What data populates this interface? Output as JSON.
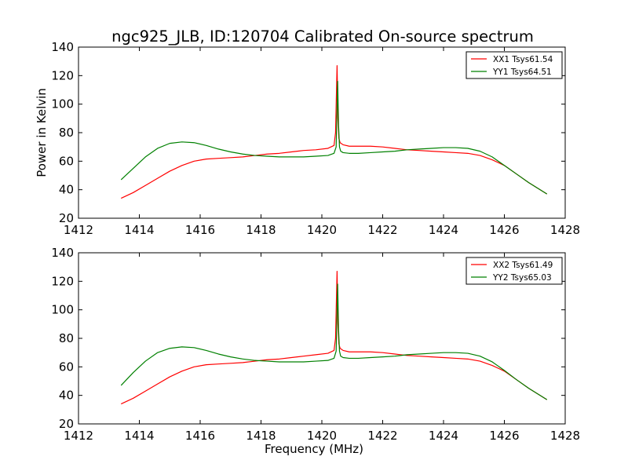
{
  "figure": {
    "title": "ngc925_JLB, ID:120704 Calibrated On-source spectrum",
    "xlabel": "Frequency (MHz)",
    "ylabel": "Power in Kelvin"
  },
  "colors": {
    "xx": "#ff0000",
    "yy": "#008000",
    "axes": "#000000",
    "background": "#ffffff"
  },
  "chart_data": [
    {
      "type": "line",
      "title": "",
      "xlabel": "",
      "ylabel": "Power in Kelvin",
      "xlim": [
        1412,
        1428
      ],
      "ylim": [
        20,
        140
      ],
      "xticks": [
        "1412",
        "1414",
        "1416",
        "1418",
        "1420",
        "1422",
        "1424",
        "1426",
        "1428"
      ],
      "yticks": [
        "20",
        "40",
        "60",
        "80",
        "100",
        "120",
        "140"
      ],
      "legend": "top-right",
      "series": [
        {
          "name": "XX1 Tsys61.54",
          "color": "#ff0000",
          "x": [
            1413.4,
            1413.8,
            1414.2,
            1414.6,
            1415.0,
            1415.4,
            1415.8,
            1416.2,
            1416.6,
            1417.0,
            1417.4,
            1417.8,
            1418.2,
            1418.6,
            1419.0,
            1419.4,
            1419.8,
            1420.2,
            1420.4,
            1420.45,
            1420.5,
            1420.53,
            1420.56,
            1420.6,
            1420.7,
            1420.9,
            1421.2,
            1421.6,
            1422.0,
            1422.4,
            1422.8,
            1423.2,
            1423.6,
            1424.0,
            1424.4,
            1424.8,
            1425.2,
            1425.6,
            1426.0,
            1426.4,
            1426.8,
            1427.1,
            1427.4
          ],
          "y": [
            34,
            38,
            43,
            48,
            53,
            57,
            60,
            61.5,
            62,
            62.5,
            63,
            64,
            65,
            65.5,
            66.5,
            67.5,
            68,
            69,
            71,
            80,
            127,
            90,
            76,
            73,
            71.5,
            70.5,
            70.5,
            70.5,
            70,
            69,
            68,
            67.5,
            67,
            66.5,
            66,
            65.5,
            64,
            61,
            57,
            51,
            45,
            41,
            37
          ]
        },
        {
          "name": "YY1 Tsys64.51",
          "color": "#008000",
          "x": [
            1413.4,
            1413.8,
            1414.2,
            1414.6,
            1415.0,
            1415.4,
            1415.8,
            1416.2,
            1416.6,
            1417.0,
            1417.4,
            1417.8,
            1418.2,
            1418.6,
            1419.0,
            1419.4,
            1419.8,
            1420.2,
            1420.4,
            1420.47,
            1420.52,
            1420.55,
            1420.58,
            1420.62,
            1420.7,
            1420.9,
            1421.2,
            1421.6,
            1422.0,
            1422.4,
            1422.8,
            1423.2,
            1423.6,
            1424.0,
            1424.4,
            1424.8,
            1425.2,
            1425.6,
            1426.0,
            1426.4,
            1426.8,
            1427.1,
            1427.4
          ],
          "y": [
            47,
            55,
            63,
            69,
            72.5,
            73.5,
            73,
            71,
            68.5,
            66.5,
            65,
            64,
            63.5,
            63,
            63,
            63,
            63.5,
            64,
            65.5,
            70,
            116,
            85,
            70,
            67,
            66,
            65.5,
            65.5,
            66,
            66.5,
            67,
            68,
            68.5,
            69,
            69.5,
            69.5,
            69,
            67,
            63,
            57,
            51,
            45,
            41,
            37
          ]
        }
      ]
    },
    {
      "type": "line",
      "title": "",
      "xlabel": "Frequency (MHz)",
      "ylabel": "",
      "xlim": [
        1412,
        1428
      ],
      "ylim": [
        20,
        140
      ],
      "xticks": [
        "1412",
        "1414",
        "1416",
        "1418",
        "1420",
        "1422",
        "1424",
        "1426",
        "1428"
      ],
      "yticks": [
        "20",
        "40",
        "60",
        "80",
        "100",
        "120",
        "140"
      ],
      "legend": "top-right",
      "series": [
        {
          "name": "XX2 Tsys61.49",
          "color": "#ff0000",
          "x": [
            1413.4,
            1413.8,
            1414.2,
            1414.6,
            1415.0,
            1415.4,
            1415.8,
            1416.2,
            1416.6,
            1417.0,
            1417.4,
            1417.8,
            1418.2,
            1418.6,
            1419.0,
            1419.4,
            1419.8,
            1420.2,
            1420.4,
            1420.45,
            1420.5,
            1420.53,
            1420.56,
            1420.6,
            1420.7,
            1420.9,
            1421.2,
            1421.6,
            1422.0,
            1422.4,
            1422.8,
            1423.2,
            1423.6,
            1424.0,
            1424.4,
            1424.8,
            1425.2,
            1425.6,
            1426.0,
            1426.4,
            1426.8,
            1427.1,
            1427.4
          ],
          "y": [
            34,
            38,
            43,
            48,
            53,
            57,
            60,
            61.5,
            62,
            62.5,
            63,
            64,
            65,
            65.5,
            66.5,
            67.5,
            68.5,
            69.5,
            71.5,
            80,
            127,
            90,
            76,
            73,
            71.5,
            70.5,
            70.5,
            70.5,
            70,
            69,
            68,
            67.5,
            67,
            66.5,
            66,
            65.5,
            64,
            61,
            57,
            51,
            45,
            41,
            37
          ]
        },
        {
          "name": "YY2 Tsys65.03",
          "color": "#008000",
          "x": [
            1413.4,
            1413.8,
            1414.2,
            1414.6,
            1415.0,
            1415.4,
            1415.8,
            1416.2,
            1416.6,
            1417.0,
            1417.4,
            1417.8,
            1418.2,
            1418.6,
            1419.0,
            1419.4,
            1419.8,
            1420.2,
            1420.4,
            1420.47,
            1420.52,
            1420.55,
            1420.58,
            1420.62,
            1420.7,
            1420.9,
            1421.2,
            1421.6,
            1422.0,
            1422.4,
            1422.8,
            1423.2,
            1423.6,
            1424.0,
            1424.4,
            1424.8,
            1425.2,
            1425.6,
            1426.0,
            1426.4,
            1426.8,
            1427.1,
            1427.4
          ],
          "y": [
            47,
            56,
            64,
            70,
            73,
            74,
            73.5,
            71.5,
            69,
            67,
            65.5,
            64.5,
            64,
            63.5,
            63.5,
            63.5,
            64,
            64.5,
            66,
            71,
            118,
            86,
            71,
            67.5,
            66.5,
            66,
            66,
            66.5,
            67,
            67.5,
            68.5,
            69,
            69.5,
            70,
            70,
            69.5,
            67.5,
            63.5,
            57.5,
            51,
            45,
            41,
            37
          ]
        }
      ]
    }
  ]
}
